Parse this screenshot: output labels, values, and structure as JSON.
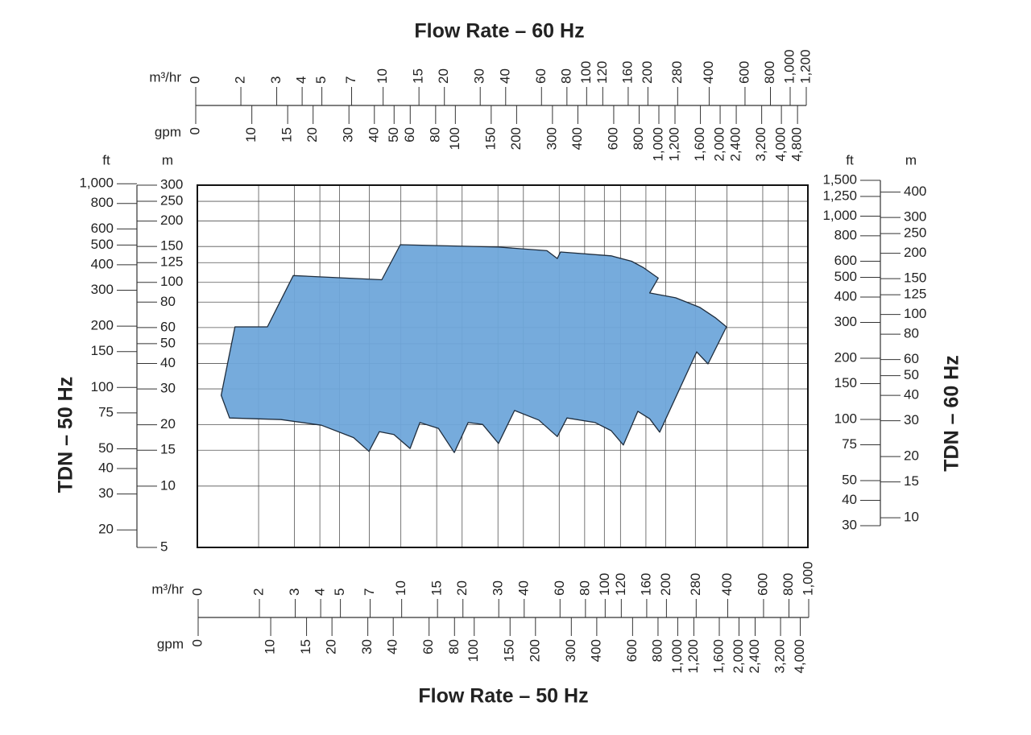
{
  "chart_data": {
    "type": "area",
    "color": "#6fa6da",
    "x": [
      1.31,
      1.53,
      2.21,
      2.96,
      8.06,
      9.94,
      30.2,
      52.2,
      58.7,
      60.9,
      108,
      136,
      156,
      184,
      167,
      224,
      295,
      353,
      398,
      323,
      284,
      187,
      167,
      146,
      124,
      108,
      90.1,
      65.5,
      58.7,
      47.6,
      36.2,
      30.2,
      25.2,
      21.4,
      18.3,
      15.3,
      12.4,
      11.1,
      9.24,
      7.84,
      6.97,
      5.86,
      4.07,
      2.58,
      1.44
    ],
    "values": [
      27.9,
      60.5,
      60.5,
      108,
      103,
      153,
      149,
      143,
      131,
      141,
      135,
      127,
      118,
      105,
      88.7,
      84,
      75.3,
      66.8,
      60.5,
      39.8,
      45.6,
      18.4,
      21.4,
      23.3,
      15.9,
      18.7,
      20.5,
      21.6,
      17.5,
      21.1,
      23.5,
      16.2,
      20.1,
      20.5,
      14.6,
      19.2,
      20.5,
      15.3,
      17.9,
      18.5,
      14.8,
      17.3,
      19.9,
      21.2,
      21.6
    ],
    "x_axes": [
      {
        "position": "top",
        "title": "Flow Rate – 60 Hz",
        "scales": [
          {
            "unit": "m³/hr",
            "log": true,
            "lim": [
              1.2,
              1200
            ],
            "ticks": [
              0,
              2,
              3,
              4,
              5,
              7,
              10,
              15,
              20,
              30,
              40,
              60,
              80,
              100,
              120,
              160,
              200,
              280,
              400,
              600,
              800,
              {
                "value": 1000,
                "label": "1,000"
              },
              {
                "value": 1200,
                "label": "1,200"
              }
            ]
          },
          {
            "unit": "gpm",
            "log": true,
            "lim": [
              5.3,
              5300
            ],
            "ticks": [
              0,
              10,
              15,
              20,
              30,
              40,
              50,
              60,
              80,
              100,
              150,
              200,
              300,
              400,
              600,
              800,
              {
                "value": 1000,
                "label": "1,000"
              },
              {
                "value": 1200,
                "label": "1,200"
              },
              {
                "value": 1600,
                "label": "1,600"
              },
              {
                "value": 2000,
                "label": "2,000"
              },
              {
                "value": 2400,
                "label": "2,400"
              },
              {
                "value": 3200,
                "label": "3,200"
              },
              {
                "value": 4000,
                "label": "4,000"
              },
              {
                "value": 4800,
                "label": "4,800"
              }
            ]
          }
        ]
      },
      {
        "position": "bottom",
        "title": "Flow Rate – 50 Hz",
        "scales": [
          {
            "unit": "m³/hr",
            "log": true,
            "grid": true,
            "lim": [
              1,
              1000
            ],
            "ticks": [
              0,
              2,
              3,
              4,
              5,
              7,
              10,
              15,
              20,
              30,
              40,
              60,
              80,
              100,
              120,
              160,
              200,
              280,
              400,
              600,
              800,
              {
                "value": 1000,
                "label": "1,000"
              }
            ]
          },
          {
            "unit": "gpm",
            "log": true,
            "lim": [
              4.4,
              4400
            ],
            "ticks": [
              0,
              10,
              15,
              20,
              30,
              40,
              60,
              80,
              100,
              150,
              200,
              300,
              400,
              600,
              800,
              {
                "value": 1000,
                "label": "1,000"
              },
              {
                "value": 1200,
                "label": "1,200"
              },
              {
                "value": 1600,
                "label": "1,600"
              },
              {
                "value": 2000,
                "label": "2,000"
              },
              {
                "value": 2400,
                "label": "2,400"
              },
              {
                "value": 3200,
                "label": "3,200"
              },
              {
                "value": 4000,
                "label": "4,000"
              }
            ]
          }
        ]
      }
    ],
    "y_axes": [
      {
        "position": "left",
        "title": "TDN – 50 Hz",
        "scales": [
          {
            "unit": "ft",
            "log": true,
            "lim": [
              16.4,
              984
            ],
            "ticks": [
              {
                "value": 1000,
                "label": "1,000"
              },
              800,
              600,
              500,
              400,
              300,
              200,
              150,
              100,
              75,
              50,
              40,
              30,
              20
            ]
          },
          {
            "unit": "m",
            "log": true,
            "grid": true,
            "lim": [
              5,
              300
            ],
            "ticks": [
              300,
              250,
              200,
              150,
              125,
              100,
              80,
              60,
              50,
              40,
              30,
              20,
              15,
              10,
              5
            ]
          }
        ]
      },
      {
        "position": "right",
        "title": "TDN – 60 Hz",
        "scales": [
          {
            "unit": "ft",
            "log": true,
            "lim": [
              30,
              1500
            ],
            "ticks": [
              {
                "value": 1500,
                "label": "1,500"
              },
              {
                "value": 1250,
                "label": "1,250"
              },
              {
                "value": 1000,
                "label": "1,000"
              },
              800,
              600,
              500,
              400,
              300,
              200,
              150,
              100,
              75,
              50,
              40,
              30
            ]
          },
          {
            "unit": "m",
            "log": true,
            "lim": [
              9.14,
              457
            ],
            "ticks": [
              400,
              300,
              250,
              200,
              150,
              125,
              100,
              80,
              60,
              50,
              40,
              30,
              20,
              15,
              10
            ]
          }
        ]
      }
    ]
  }
}
